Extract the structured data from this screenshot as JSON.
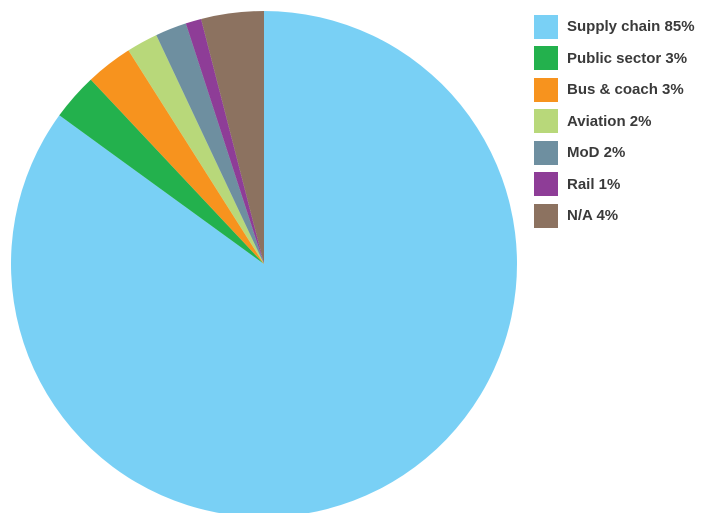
{
  "chart_data": {
    "type": "pie",
    "title": "",
    "start": "12 o'clock",
    "direction": "clockwise",
    "slices": [
      {
        "label": "Supply chain",
        "value": 85,
        "display": "85%",
        "color": "#79d0f5"
      },
      {
        "label": "Public sector",
        "value": 3,
        "display": "3%",
        "color": "#23b14d"
      },
      {
        "label": "Bus & coach",
        "value": 3,
        "display": "3%",
        "color": "#f7931e"
      },
      {
        "label": "Aviation",
        "value": 2,
        "display": "2%",
        "color": "#b8d87a"
      },
      {
        "label": "MoD",
        "value": 2,
        "display": "2%",
        "color": "#6e8fa0"
      },
      {
        "label": "Rail",
        "value": 1,
        "display": "1%",
        "color": "#8e3d97"
      },
      {
        "label": "N/A",
        "value": 4,
        "display": "4%",
        "color": "#8c7260"
      }
    ],
    "legend_position": "top-right"
  }
}
